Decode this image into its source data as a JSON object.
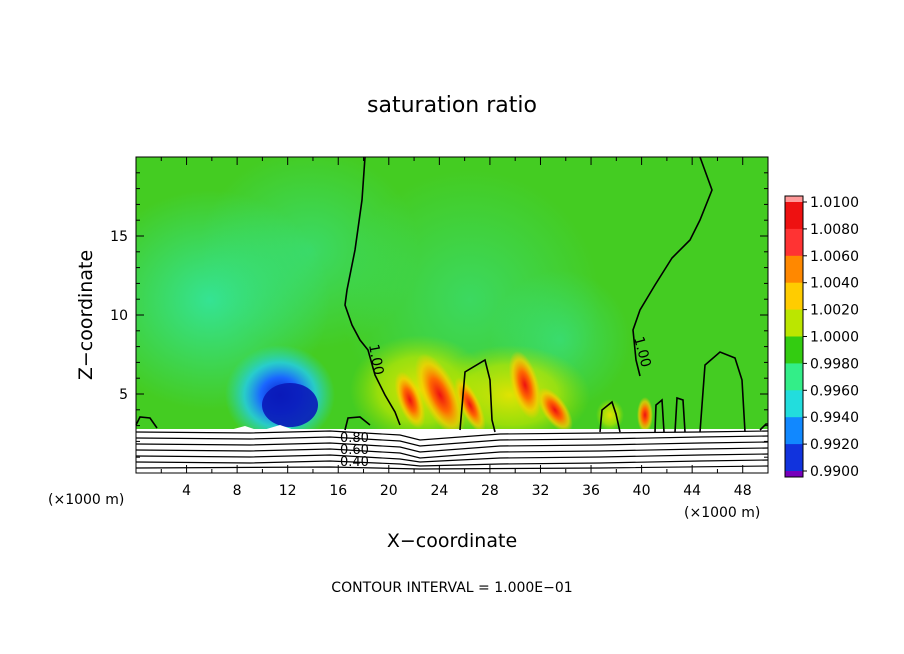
{
  "chart_data": {
    "type": "heatmap",
    "title": "saturation ratio",
    "xlabel": "X−coordinate",
    "ylabel": "Z−coordinate",
    "x_unit_left": "(×1000 m)",
    "x_unit_right": "(×1000 m)",
    "xlim": [
      0,
      50
    ],
    "ylim": [
      0,
      20
    ],
    "x_ticks": [
      4,
      8,
      12,
      16,
      20,
      24,
      28,
      32,
      36,
      40,
      44,
      48
    ],
    "y_ticks": [
      5,
      10,
      15
    ],
    "colorbar": {
      "levels": [
        "1.0100",
        "1.0080",
        "1.0060",
        "1.0040",
        "1.0020",
        "1.0000",
        "0.9980",
        "0.9960",
        "0.9940",
        "0.9920",
        "0.9900"
      ],
      "colors": [
        "#ff9999",
        "#ee1111",
        "#ff3333",
        "#ff8800",
        "#ffcc00",
        "#bbe600",
        "#33cc11",
        "#33ee88",
        "#22dddd",
        "#1188ff",
        "#1133dd",
        "#0000aa",
        "#7700bb"
      ]
    },
    "contour_labels": [
      "1.00",
      "1.00",
      "0.80",
      "0.60",
      "0.40"
    ],
    "footer": "CONTOUR INTERVAL = 1.000E−01"
  }
}
